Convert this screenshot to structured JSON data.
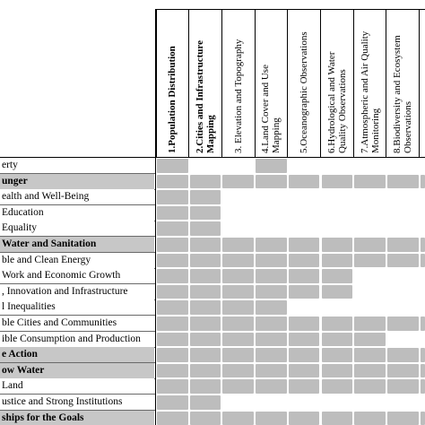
{
  "table": {
    "columns": [
      {
        "lines": [
          "1.Population Distribution"
        ],
        "bold": true
      },
      {
        "lines": [
          "2.Cities and Infrastructure",
          "Mapping"
        ],
        "bold": true
      },
      {
        "lines": [
          "3. Elevation and Topography"
        ],
        "bold": false
      },
      {
        "lines": [
          "4.Land Cover and Use",
          "Mapping"
        ],
        "bold": false
      },
      {
        "lines": [
          "5.Oceanographic Observations"
        ],
        "bold": false
      },
      {
        "lines": [
          "6.Hydrological and Water",
          "Quality Observations"
        ],
        "bold": false
      },
      {
        "lines": [
          "7.Atmospheric and Air Quality",
          "Monitoring"
        ],
        "bold": false
      },
      {
        "lines": [
          "8.Biodiversity and Ecosystem",
          "Observations"
        ],
        "bold": false
      },
      {
        "lines": [
          ""
        ],
        "bold": false
      }
    ],
    "rows": [
      {
        "label": "erty",
        "bold": false,
        "shade": "white",
        "cells": [
          1,
          0,
          0,
          1,
          0,
          0,
          0,
          0,
          0
        ]
      },
      {
        "label": "unger",
        "bold": true,
        "shade": "dark",
        "cells": [
          1,
          1,
          1,
          1,
          1,
          1,
          1,
          1,
          1
        ]
      },
      {
        "label": "ealth and Well-Being",
        "bold": false,
        "shade": "white",
        "cells": [
          1,
          1,
          0,
          0,
          0,
          0,
          0,
          0,
          0
        ]
      },
      {
        "label": "Education",
        "bold": false,
        "shade": "white",
        "cells": [
          1,
          1,
          0,
          0,
          0,
          0,
          0,
          0,
          0
        ]
      },
      {
        "label": "Equality",
        "bold": false,
        "shade": "white",
        "cells": [
          1,
          1,
          0,
          0,
          0,
          0,
          0,
          0,
          0
        ]
      },
      {
        "label": "Water and Sanitation",
        "bold": true,
        "shade": "dark",
        "cells": [
          1,
          1,
          1,
          1,
          1,
          1,
          1,
          1,
          1
        ]
      },
      {
        "label": "ble and Clean Energy",
        "bold": false,
        "shade": "white",
        "cells": [
          1,
          1,
          1,
          1,
          1,
          1,
          1,
          1,
          1
        ]
      },
      {
        "label": "Work and Economic Growth",
        "bold": false,
        "shade": "white",
        "cells": [
          1,
          1,
          1,
          1,
          1,
          1,
          0,
          0,
          0
        ]
      },
      {
        "label": ", Innovation and Infrastructure",
        "bold": false,
        "shade": "white",
        "cells": [
          1,
          1,
          1,
          1,
          1,
          1,
          0,
          0,
          0
        ]
      },
      {
        "label": "l Inequalities",
        "bold": false,
        "shade": "white",
        "cells": [
          1,
          1,
          1,
          1,
          0,
          0,
          0,
          0,
          0
        ]
      },
      {
        "label": "ble Cities and Communities",
        "bold": false,
        "shade": "white",
        "cells": [
          1,
          1,
          1,
          1,
          1,
          1,
          1,
          1,
          1
        ]
      },
      {
        "label": "ible Consumption and Production",
        "bold": false,
        "shade": "white",
        "cells": [
          1,
          1,
          1,
          1,
          1,
          1,
          1,
          0,
          0
        ]
      },
      {
        "label": "e Action",
        "bold": true,
        "shade": "dark",
        "cells": [
          1,
          1,
          1,
          1,
          1,
          1,
          1,
          1,
          1
        ]
      },
      {
        "label": "ow Water",
        "bold": true,
        "shade": "dark",
        "cells": [
          1,
          1,
          1,
          1,
          1,
          1,
          1,
          1,
          1
        ]
      },
      {
        "label": "Land",
        "bold": false,
        "shade": "white",
        "cells": [
          1,
          1,
          1,
          1,
          1,
          1,
          1,
          1,
          1
        ]
      },
      {
        "label": "ustice and Strong Institutions",
        "bold": false,
        "shade": "white",
        "cells": [
          1,
          1,
          0,
          0,
          0,
          0,
          0,
          0,
          0
        ]
      },
      {
        "label": "ships for the Goals",
        "bold": true,
        "shade": "dark",
        "cells": [
          1,
          1,
          1,
          1,
          1,
          1,
          1,
          1,
          1
        ]
      }
    ]
  },
  "colors": {
    "filled_cell": "#bdbdbd",
    "empty_cell": "#ffffff",
    "highlight_row": "#c7c7c7",
    "grid_line": "#000000"
  }
}
